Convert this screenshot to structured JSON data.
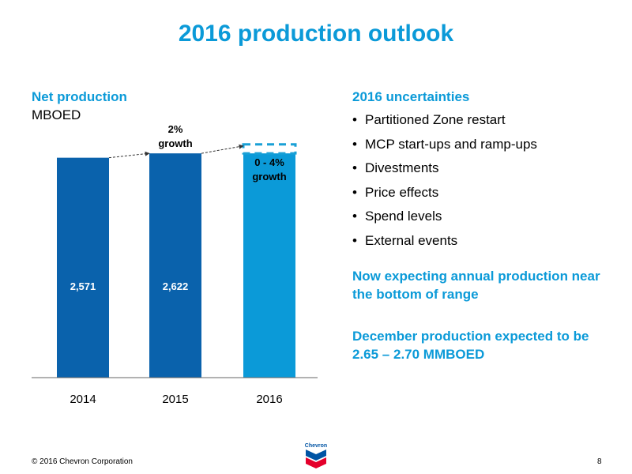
{
  "title": "2016 production outlook",
  "chart_title": "Net production",
  "chart_unit": "MBOED",
  "chart_data": {
    "type": "bar",
    "categories": [
      "2014",
      "2015",
      "2016"
    ],
    "values": [
      2571,
      2622,
      2622
    ],
    "value_labels": [
      "2,571",
      "2,622",
      ""
    ],
    "uncertain_range_2016": [
      2622,
      2727
    ],
    "growth_labels": [
      {
        "category": "2015",
        "lines": [
          "2%",
          "growth"
        ]
      },
      {
        "category": "2016",
        "lines": [
          "0 - 4%",
          "growth"
        ]
      }
    ],
    "ylim": [
      0,
      2771
    ],
    "grid": false,
    "colors": {
      "dark_bar": "#0a62ac",
      "light_bar": "#0b9ad8",
      "uncertain_outline": "#1aa0d6",
      "axis": "#666666",
      "arrow": "#333333"
    }
  },
  "uncertainties": {
    "heading": "2016 uncertainties",
    "items": [
      "Partitioned Zone restart",
      "MCP start-ups and ramp-ups",
      "Divestments",
      "Price effects",
      "Spend levels",
      "External events"
    ],
    "bullet": "•"
  },
  "notes": [
    "Now expecting annual production near the bottom of range",
    "December production expected to be 2.65 – 2.70 MMBOED"
  ],
  "footer": "© 2016 Chevron Corporation",
  "page_number": "8",
  "logo": {
    "name": "chevron-logo",
    "text": "Chevron",
    "colors": {
      "blue": "#0054a4",
      "red": "#e4002b"
    }
  }
}
